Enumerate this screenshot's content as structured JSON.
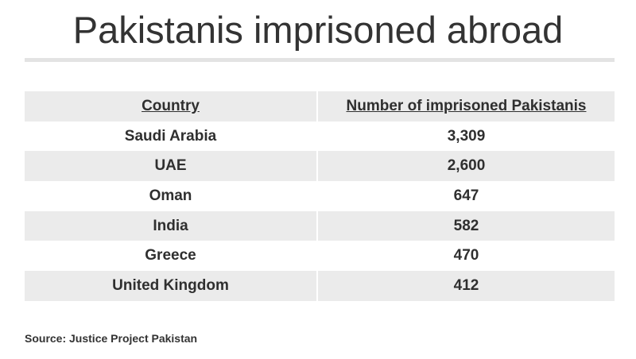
{
  "title": "Pakistanis imprisoned abroad",
  "source": "Source: Justice Project Pakistan",
  "chart_data": {
    "type": "table",
    "title": "Pakistanis imprisoned abroad",
    "columns": [
      "Country",
      "Number of imprisoned Pakistanis"
    ],
    "rows": [
      {
        "country": "Saudi Arabia",
        "value": "3,309"
      },
      {
        "country": "UAE",
        "value": "2,600"
      },
      {
        "country": "Oman",
        "value": "647"
      },
      {
        "country": "India",
        "value": "582"
      },
      {
        "country": "Greece",
        "value": "470"
      },
      {
        "country": "United Kingdom",
        "value": "412"
      }
    ]
  }
}
